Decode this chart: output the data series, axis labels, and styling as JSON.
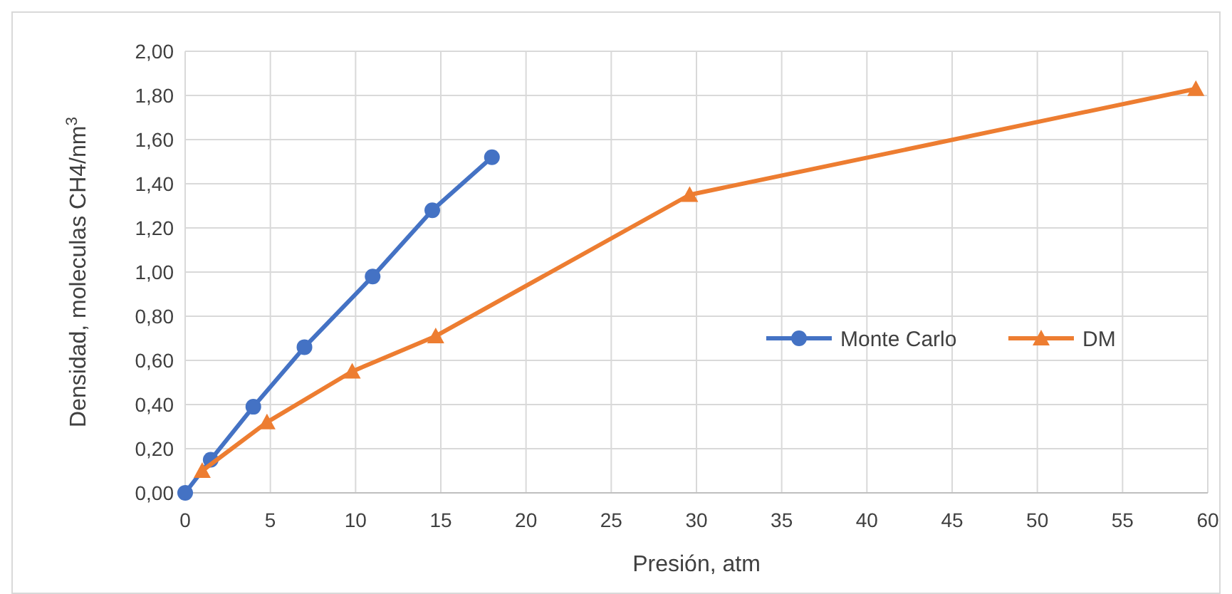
{
  "chart_data": {
    "type": "line",
    "xlabel": "Presión, atm",
    "ylabel": "Densidad, moleculas CH4/nm$^{3}$",
    "xlim": [
      0,
      60
    ],
    "xticks": [
      0,
      5,
      10,
      15,
      20,
      25,
      30,
      35,
      40,
      45,
      50,
      55,
      60
    ],
    "ylim": [
      0,
      2
    ],
    "yticks": [
      {
        "value": 0,
        "label": "0,00"
      },
      {
        "value": 0.2,
        "label": "0,20"
      },
      {
        "value": 0.4,
        "label": "0,40"
      },
      {
        "value": 0.6,
        "label": "0,60"
      },
      {
        "value": 0.8,
        "label": "0,80"
      },
      {
        "value": 1,
        "label": "1,00"
      },
      {
        "value": 1.2,
        "label": "1,20"
      },
      {
        "value": 1.4,
        "label": "1,40"
      },
      {
        "value": 1.6,
        "label": "1,60"
      },
      {
        "value": 1.8,
        "label": "1,80"
      },
      {
        "value": 2,
        "label": "2,00"
      }
    ],
    "grid": true,
    "legend": "right",
    "series": [
      {
        "name": "Monte Carlo",
        "color": "#4472c4",
        "marker": "circle",
        "x": [
          0,
          1.5,
          4,
          7,
          11,
          14.5,
          18
        ],
        "values": [
          0,
          0.15,
          0.39,
          0.66,
          0.98,
          1.28,
          1.52
        ]
      },
      {
        "name": "DM",
        "color": "#ed7d31",
        "marker": "triangle",
        "x": [
          1,
          4.8,
          9.8,
          14.7,
          29.6,
          59.3
        ],
        "values": [
          0.1,
          0.32,
          0.55,
          0.71,
          1.35,
          1.83
        ]
      }
    ]
  }
}
